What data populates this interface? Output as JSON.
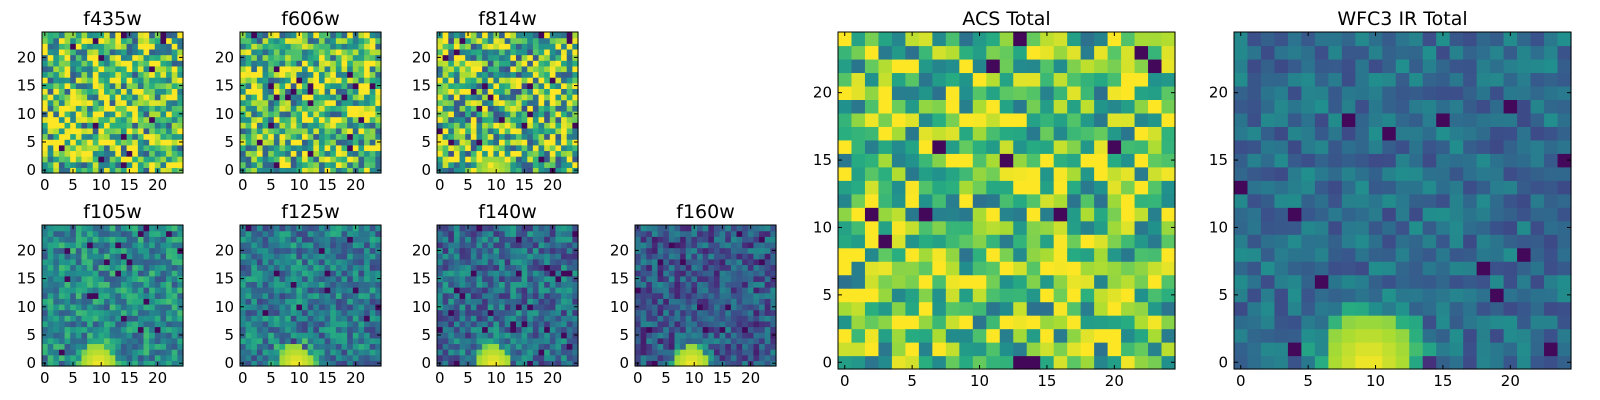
{
  "chart_data": [
    {
      "type": "heatmap",
      "title": "f435w",
      "grid_size": 25,
      "colormap": "viridis",
      "x_ticks": [
        "0",
        "5",
        "10",
        "15",
        "20"
      ],
      "y_ticks": [
        "0",
        "5",
        "10",
        "15",
        "20"
      ],
      "xlim": [
        0,
        25
      ],
      "ylim": [
        0,
        25
      ],
      "pattern": "noise",
      "mean": 0.72,
      "spread": 0.45,
      "seed": 11,
      "blob": null
    },
    {
      "type": "heatmap",
      "title": "f606w",
      "grid_size": 25,
      "colormap": "viridis",
      "x_ticks": [
        "0",
        "5",
        "10",
        "15",
        "20"
      ],
      "y_ticks": [
        "0",
        "5",
        "10",
        "15",
        "20"
      ],
      "xlim": [
        0,
        25
      ],
      "ylim": [
        0,
        25
      ],
      "pattern": "noise",
      "mean": 0.7,
      "spread": 0.42,
      "seed": 23,
      "blob": null
    },
    {
      "type": "heatmap",
      "title": "f814w",
      "grid_size": 25,
      "colormap": "viridis",
      "x_ticks": [
        "0",
        "5",
        "10",
        "15",
        "20"
      ],
      "y_ticks": [
        "0",
        "5",
        "10",
        "15",
        "20"
      ],
      "xlim": [
        0,
        25
      ],
      "ylim": [
        0,
        25
      ],
      "pattern": "noise",
      "mean": 0.68,
      "spread": 0.45,
      "seed": 37,
      "blob": {
        "x": 9.5,
        "y": 0,
        "radius": 3,
        "peak": 0.95
      }
    },
    {
      "type": "heatmap",
      "title": "f105w",
      "grid_size": 25,
      "colormap": "viridis",
      "x_ticks": [
        "0",
        "5",
        "10",
        "15",
        "20"
      ],
      "y_ticks": [
        "0",
        "5",
        "10",
        "15",
        "20"
      ],
      "xlim": [
        0,
        25
      ],
      "ylim": [
        0,
        25
      ],
      "pattern": "noise",
      "mean": 0.48,
      "spread": 0.22,
      "seed": 41,
      "blob": {
        "x": 9.5,
        "y": 0,
        "radius": 3.2,
        "peak": 1.0
      }
    },
    {
      "type": "heatmap",
      "title": "f125w",
      "grid_size": 25,
      "colormap": "viridis",
      "x_ticks": [
        "0",
        "5",
        "10",
        "15",
        "20"
      ],
      "y_ticks": [
        "0",
        "5",
        "10",
        "15",
        "20"
      ],
      "xlim": [
        0,
        25
      ],
      "ylim": [
        0,
        25
      ],
      "pattern": "noise",
      "mean": 0.42,
      "spread": 0.22,
      "seed": 53,
      "blob": {
        "x": 9.5,
        "y": 0,
        "radius": 3.2,
        "peak": 1.0
      }
    },
    {
      "type": "heatmap",
      "title": "f140w",
      "grid_size": 25,
      "colormap": "viridis",
      "x_ticks": [
        "0",
        "5",
        "10",
        "15",
        "20"
      ],
      "y_ticks": [
        "0",
        "5",
        "10",
        "15",
        "20"
      ],
      "xlim": [
        0,
        25
      ],
      "ylim": [
        0,
        25
      ],
      "pattern": "noise",
      "mean": 0.36,
      "spread": 0.22,
      "seed": 67,
      "blob": {
        "x": 9.5,
        "y": 0,
        "radius": 3.2,
        "peak": 1.0
      }
    },
    {
      "type": "heatmap",
      "title": "f160w",
      "grid_size": 25,
      "colormap": "viridis",
      "x_ticks": [
        "0",
        "5",
        "10",
        "15",
        "20"
      ],
      "y_ticks": [
        "0",
        "5",
        "10",
        "15",
        "20"
      ],
      "xlim": [
        0,
        25
      ],
      "ylim": [
        0,
        25
      ],
      "pattern": "noise",
      "mean": 0.28,
      "spread": 0.2,
      "seed": 79,
      "blob": {
        "x": 9.5,
        "y": 0,
        "radius": 3.2,
        "peak": 1.0
      }
    },
    {
      "type": "heatmap",
      "title": "ACS Total",
      "grid_size": 25,
      "colormap": "viridis",
      "x_ticks": [
        "0",
        "5",
        "10",
        "15",
        "20"
      ],
      "y_ticks": [
        "0",
        "5",
        "10",
        "15",
        "20"
      ],
      "xlim": [
        0,
        25
      ],
      "ylim": [
        0,
        25
      ],
      "pattern": "noise",
      "mean": 0.72,
      "spread": 0.35,
      "seed": 97,
      "blob": null
    },
    {
      "type": "heatmap",
      "title": "WFC3 IR Total",
      "grid_size": 25,
      "colormap": "viridis",
      "x_ticks": [
        "0",
        "5",
        "10",
        "15",
        "20"
      ],
      "y_ticks": [
        "0",
        "5",
        "10",
        "15",
        "20"
      ],
      "xlim": [
        0,
        25
      ],
      "ylim": [
        0,
        25
      ],
      "pattern": "noise",
      "mean": 0.36,
      "spread": 0.14,
      "seed": 131,
      "blob": {
        "x": 9.5,
        "y": 0,
        "radius": 3.5,
        "peak": 1.0
      }
    }
  ]
}
